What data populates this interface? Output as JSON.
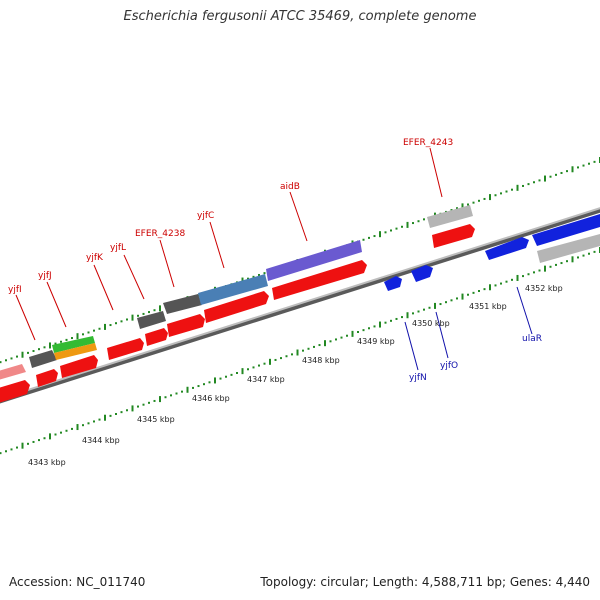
{
  "title": "Escherichia fergusonii ATCC 35469, complete genome",
  "footer": {
    "accession": "Accession: NC_011740",
    "summary": "Topology: circular; Length: 4,588,711 bp; Genes: 4,440"
  },
  "colors": {
    "forward_cds": "#ee1111",
    "reverse_cds": "#1122dd",
    "forward_label": "#cc0000",
    "reverse_label": "#1111aa",
    "backbone": "#8a8a8a",
    "tick_dots": "#228822"
  },
  "scale_ticks": [
    "4343 kbp",
    "4344 kbp",
    "4345 kbp",
    "4346 kbp",
    "4347 kbp",
    "4348 kbp",
    "4349 kbp",
    "4350 kbp",
    "4351 kbp",
    "4352 kbp"
  ],
  "forward_gene_labels": [
    "yjfI",
    "yjfJ",
    "yjfK",
    "yjfL",
    "EFER_4238",
    "yjfC",
    "aidB",
    "EFER_4243"
  ],
  "reverse_gene_labels": [
    "yjfN",
    "yjfO",
    "ulaR"
  ]
}
